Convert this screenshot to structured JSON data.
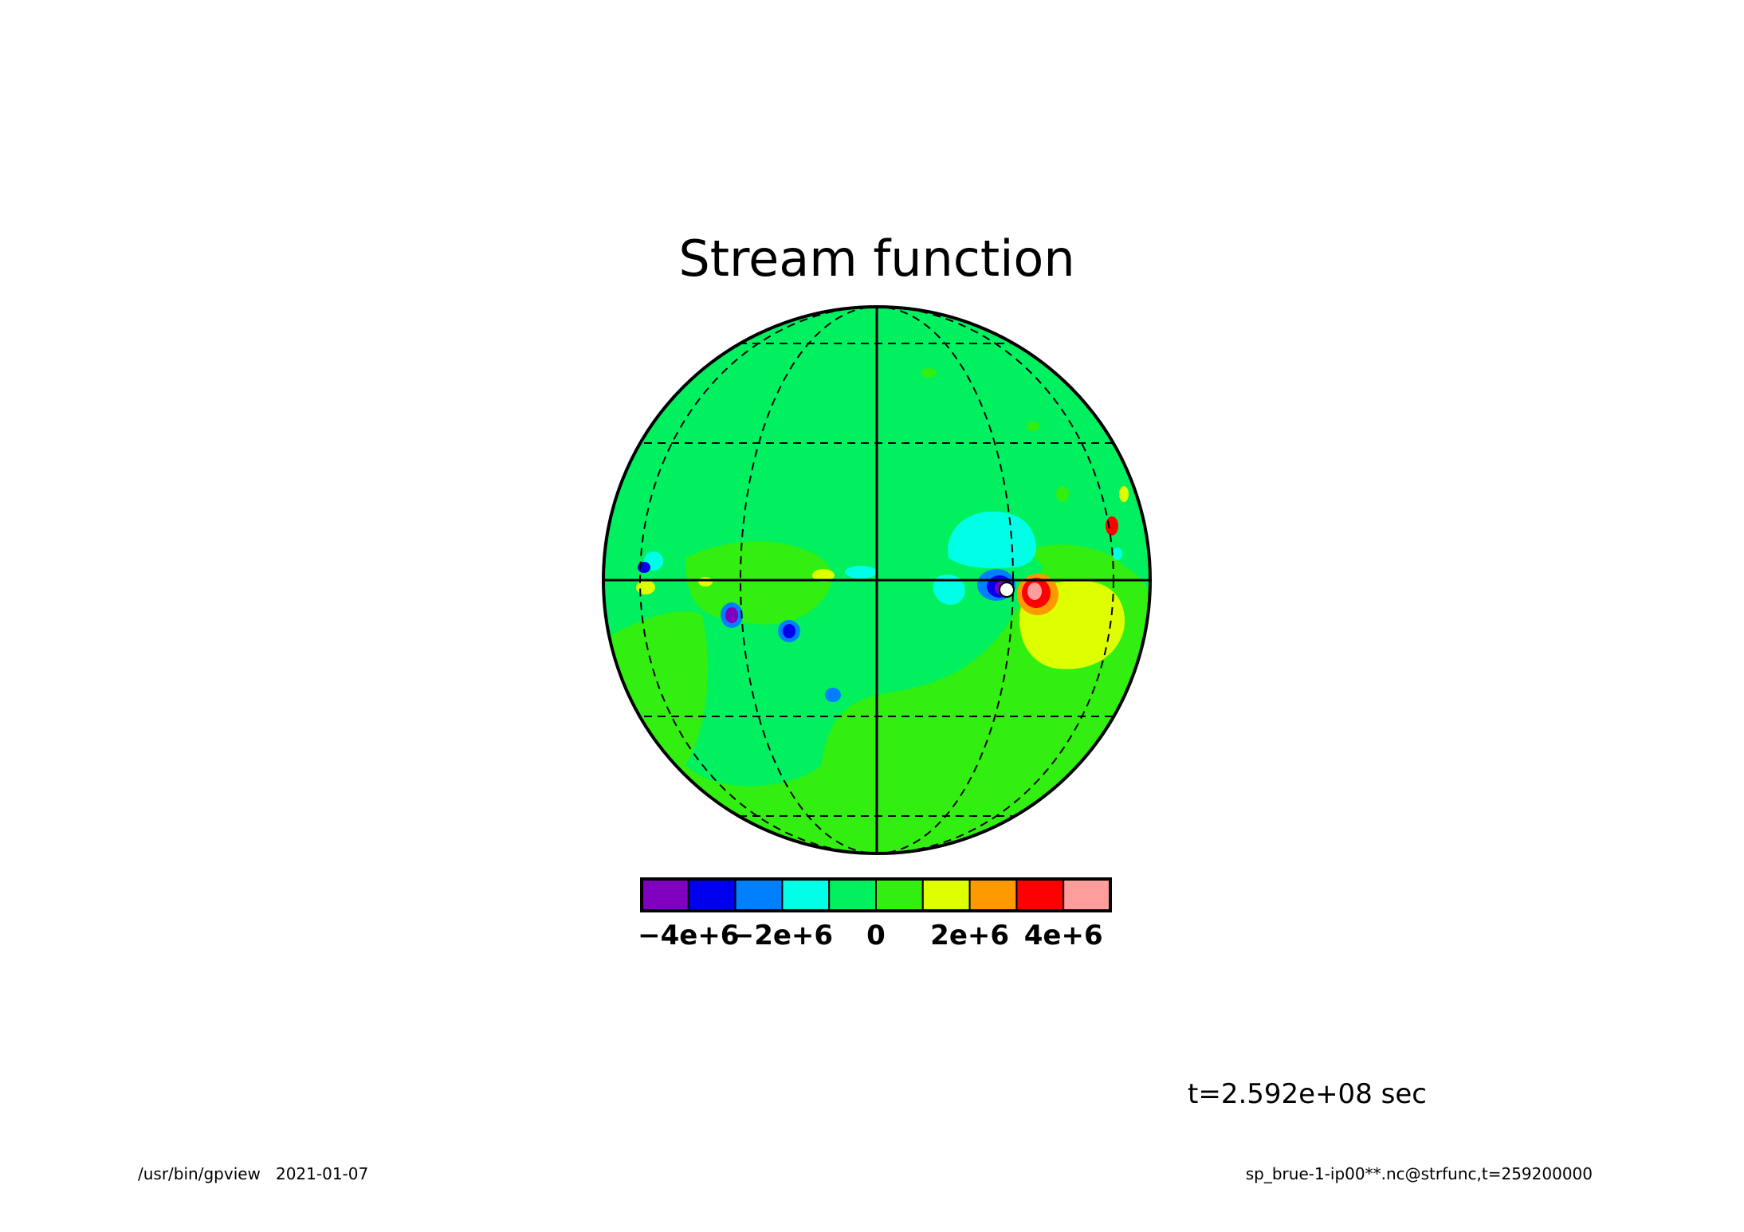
{
  "chart_data": {
    "type": "heatmap",
    "title": "Stream function",
    "projection": "orthographic",
    "grid": true,
    "graticule_lines": "dashed",
    "legend_placement": "bottom",
    "colorbar": {
      "levels": [
        -5000000.0,
        -4000000.0,
        -3000000.0,
        -2000000.0,
        -1000000.0,
        0,
        1000000.0,
        2000000.0,
        3000000.0,
        4000000.0,
        5000000.0
      ],
      "colors": [
        "#7f00bf",
        "#0000ee",
        "#0080ff",
        "#00ffe6",
        "#00f060",
        "#33ee11",
        "#ddff00",
        "#ff9900",
        "#ff0000",
        "#ff9c9c"
      ],
      "tick_labels": [
        "−4e+6",
        "−2e+6",
        "0",
        "2e+6",
        "4e+6"
      ],
      "tick_values": [
        -4000000.0,
        -2000000.0,
        0,
        2000000.0,
        4000000.0
      ]
    },
    "background_level_color": "#00f060"
  },
  "annotations": {
    "time_label": "t=2.592e+08 sec",
    "footer_left": "/usr/bin/gpview   2021-01-07",
    "footer_right": "sp_brue-1-ip00**.nc@strfunc,t=259200000"
  }
}
